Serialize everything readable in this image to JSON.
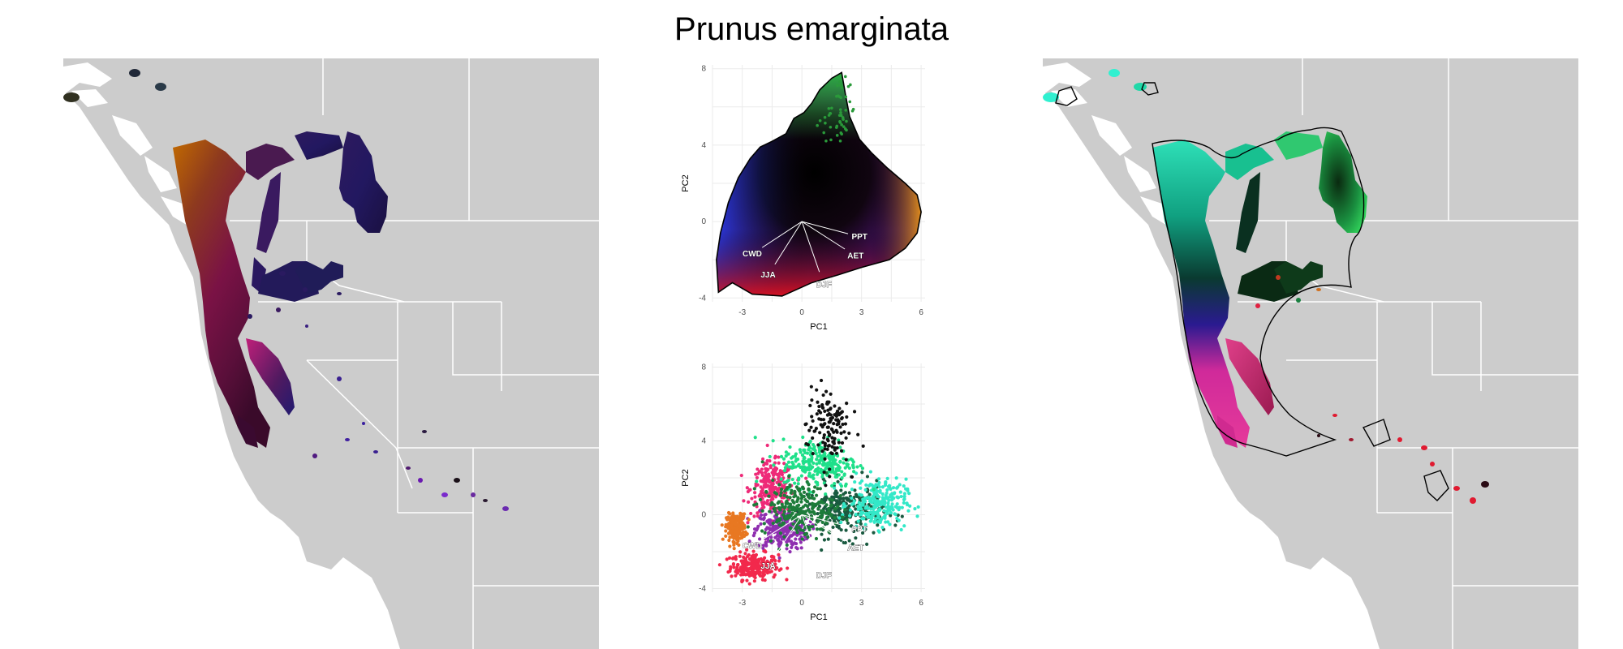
{
  "title": "Prunus emarginata",
  "chart_data": [
    {
      "type": "scatter",
      "panel": "pca-top",
      "xlabel": "PC1",
      "ylabel": "PC2",
      "xlim": [
        -4.5,
        6.2
      ],
      "ylim": [
        -4.2,
        8.2
      ],
      "xticks": [
        -3,
        0,
        3,
        6
      ],
      "yticks": [
        -4,
        0,
        4,
        8
      ],
      "grid": true,
      "coloring": "RGB mapping of climate PCA space (dark center, blue upper-left, purple lower-left, red bottom, orange right)",
      "hull": [
        [
          -4.2,
          -3.7
        ],
        [
          -3.5,
          -3.2
        ],
        [
          -2.5,
          -3.8
        ],
        [
          -1.0,
          -3.9
        ],
        [
          0.5,
          -3.2
        ],
        [
          1.8,
          -2.8
        ],
        [
          3.0,
          -2.4
        ],
        [
          4.4,
          -2.0
        ],
        [
          5.2,
          -1.4
        ],
        [
          5.8,
          -0.6
        ],
        [
          6.0,
          0.5
        ],
        [
          5.8,
          1.4
        ],
        [
          5.2,
          2.0
        ],
        [
          4.3,
          2.8
        ],
        [
          3.5,
          3.6
        ],
        [
          2.9,
          4.3
        ],
        [
          2.4,
          5.5
        ],
        [
          2.2,
          6.6
        ],
        [
          2.0,
          7.8
        ],
        [
          1.5,
          7.5
        ],
        [
          0.9,
          6.9
        ],
        [
          0.5,
          6.2
        ],
        [
          0.1,
          5.7
        ],
        [
          -0.4,
          5.4
        ],
        [
          -0.8,
          4.6
        ],
        [
          -1.5,
          4.2
        ],
        [
          -2.1,
          3.9
        ],
        [
          -2.6,
          3.3
        ],
        [
          -3.2,
          2.3
        ],
        [
          -3.7,
          1.0
        ],
        [
          -4.1,
          -0.6
        ],
        [
          -4.3,
          -2.0
        ]
      ],
      "arrows": [
        {
          "label": "PPT",
          "x": 2.9,
          "y": -0.8
        },
        {
          "label": "AET",
          "x": 2.7,
          "y": -1.8
        },
        {
          "label": "DJF",
          "x": 1.1,
          "y": -3.3
        },
        {
          "label": "CWD",
          "x": -2.5,
          "y": -1.7
        },
        {
          "label": "JJA",
          "x": -1.7,
          "y": -2.8
        }
      ]
    },
    {
      "type": "scatter",
      "panel": "pca-bottom",
      "xlabel": "PC1",
      "ylabel": "PC2",
      "xlim": [
        -4.5,
        6.2
      ],
      "ylim": [
        -4.2,
        8.2
      ],
      "xticks": [
        -3,
        0,
        3,
        6
      ],
      "yticks": [
        -4,
        0,
        4,
        8
      ],
      "grid": true,
      "clusters": [
        {
          "color": "#111111",
          "cx": 1.3,
          "cy": 4.8,
          "sx": 0.9,
          "sy": 1.8
        },
        {
          "color": "#1fe08a",
          "cx": 0.9,
          "cy": 2.8,
          "sx": 1.6,
          "sy": 1.1
        },
        {
          "color": "#33e8c8",
          "cx": 3.8,
          "cy": 0.6,
          "sx": 1.2,
          "sy": 1.1
        },
        {
          "color": "#1a5a40",
          "cx": 2.2,
          "cy": 0.2,
          "sx": 1.6,
          "sy": 1.2
        },
        {
          "color": "#ee2a78",
          "cx": -1.5,
          "cy": 1.4,
          "sx": 0.9,
          "sy": 1.2
        },
        {
          "color": "#8f2fb0",
          "cx": -1.0,
          "cy": -0.8,
          "sx": 1.1,
          "sy": 0.9
        },
        {
          "color": "#f2294c",
          "cx": -2.4,
          "cy": -2.8,
          "sx": 1.0,
          "sy": 0.6
        },
        {
          "color": "#e87822",
          "cx": -3.3,
          "cy": -0.7,
          "sx": 0.4,
          "sy": 0.6
        },
        {
          "color": "#1d7c3a",
          "cx": -0.2,
          "cy": 0.3,
          "sx": 1.5,
          "sy": 1.2
        }
      ],
      "arrows": [
        {
          "label": "PPT",
          "x": 2.9,
          "y": -0.8
        },
        {
          "label": "AET",
          "x": 2.7,
          "y": -1.8
        },
        {
          "label": "DJF",
          "x": 1.1,
          "y": -3.3
        },
        {
          "label": "CWD",
          "x": -2.5,
          "y": -1.7
        },
        {
          "label": "JJA",
          "x": -1.7,
          "y": -2.8
        }
      ]
    }
  ]
}
